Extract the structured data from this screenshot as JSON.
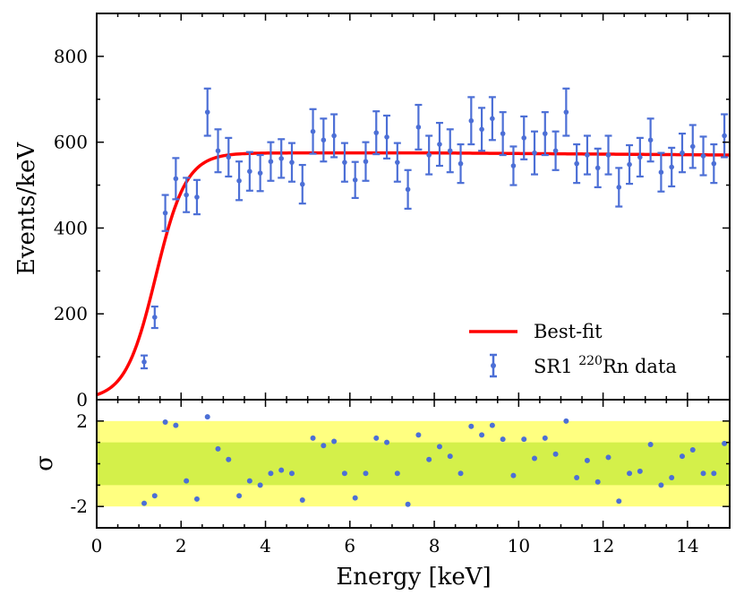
{
  "chart_data": [
    {
      "type": "scatter",
      "panel": "top",
      "ylabel": "Events/keV",
      "xlim": [
        0,
        15
      ],
      "ylim": [
        0,
        900
      ],
      "yticks": [
        0,
        200,
        400,
        600,
        800
      ],
      "ytick_labels": [
        "0",
        "200",
        "400",
        "600",
        "800"
      ],
      "legend_position": "bottom-right",
      "series": [
        {
          "name": "SR1 220Rn data",
          "legend_prefix": "SR1 ",
          "legend_sup": "220",
          "legend_suffix": "Rn data",
          "color": "#4c6fd6",
          "x": [
            1.125,
            1.375,
            1.625,
            1.875,
            2.125,
            2.375,
            2.625,
            2.875,
            3.125,
            3.375,
            3.625,
            3.875,
            4.125,
            4.375,
            4.625,
            4.875,
            5.125,
            5.375,
            5.625,
            5.875,
            6.125,
            6.375,
            6.625,
            6.875,
            7.125,
            7.375,
            7.625,
            7.875,
            8.125,
            8.375,
            8.625,
            8.875,
            9.125,
            9.375,
            9.625,
            9.875,
            10.125,
            10.375,
            10.625,
            10.875,
            11.125,
            11.375,
            11.625,
            11.875,
            12.125,
            12.375,
            12.625,
            12.875,
            13.125,
            13.375,
            13.625,
            13.875,
            14.125,
            14.375,
            14.625,
            14.875
          ],
          "y": [
            88,
            192,
            435,
            515,
            477,
            472,
            670,
            580,
            565,
            510,
            532,
            528,
            555,
            562,
            553,
            502,
            625,
            605,
            615,
            553,
            512,
            555,
            622,
            612,
            553,
            490,
            635,
            570,
            595,
            580,
            550,
            650,
            630,
            655,
            620,
            545,
            610,
            575,
            620,
            580,
            670,
            550,
            570,
            540,
            570,
            495,
            548,
            565,
            605,
            530,
            542,
            575,
            590,
            568,
            550,
            615
          ],
          "yerr": [
            15,
            25,
            42,
            48,
            40,
            40,
            55,
            50,
            45,
            45,
            45,
            42,
            45,
            45,
            45,
            45,
            52,
            50,
            50,
            45,
            42,
            45,
            50,
            50,
            45,
            45,
            52,
            45,
            50,
            50,
            45,
            55,
            50,
            50,
            50,
            45,
            50,
            50,
            50,
            45,
            55,
            45,
            45,
            45,
            45,
            45,
            45,
            45,
            50,
            45,
            45,
            45,
            50,
            45,
            45,
            50
          ]
        },
        {
          "name": "Best-fit",
          "type": "line",
          "color": "#ff0000",
          "plateau": 575,
          "threshold_keV": 1.4,
          "width_keV": 0.36,
          "x": [
            0,
            0.2,
            0.4,
            0.6,
            0.8,
            1.0,
            1.2,
            1.4,
            1.6,
            1.8,
            2.0,
            2.2,
            2.4,
            2.6,
            2.8,
            3.0,
            3.5,
            4.0,
            5.0,
            7.0,
            10.0,
            13.0,
            15.0
          ],
          "y": [
            1,
            3,
            8,
            20,
            48,
            106,
            205,
            339,
            460,
            528,
            557,
            568,
            572,
            574,
            574,
            575,
            575,
            575,
            575,
            575,
            573,
            571,
            570
          ]
        }
      ]
    },
    {
      "type": "scatter",
      "panel": "bottom",
      "xlabel": "Energy [keV]",
      "ylabel": "σ",
      "xlim": [
        0,
        15
      ],
      "ylim": [
        -3,
        3
      ],
      "xticks": [
        0,
        2,
        4,
        6,
        8,
        10,
        12,
        14
      ],
      "xtick_labels": [
        "0",
        "2",
        "4",
        "6",
        "8",
        "10",
        "12",
        "14"
      ],
      "yticks": [
        -2,
        2
      ],
      "ytick_labels": [
        "-2",
        "2"
      ],
      "bands": [
        {
          "name": "2-sigma band",
          "range": [
            -2,
            2
          ],
          "color": "#ffff80"
        },
        {
          "name": "1-sigma band",
          "range": [
            -1,
            1
          ],
          "color": "#d4f04a"
        }
      ],
      "series": [
        {
          "name": "residuals",
          "color": "#4c6fd6",
          "x": [
            1.125,
            1.375,
            1.625,
            1.875,
            2.125,
            2.375,
            2.625,
            2.875,
            3.125,
            3.375,
            3.625,
            3.875,
            4.125,
            4.375,
            4.625,
            4.875,
            5.125,
            5.375,
            5.625,
            5.875,
            6.125,
            6.375,
            6.625,
            6.875,
            7.125,
            7.375,
            7.625,
            7.875,
            8.125,
            8.375,
            8.625,
            8.875,
            9.125,
            9.375,
            9.625,
            9.875,
            10.125,
            10.375,
            10.625,
            10.875,
            11.125,
            11.375,
            11.625,
            11.875,
            12.125,
            12.375,
            12.625,
            12.875,
            13.125,
            13.375,
            13.625,
            13.875,
            14.125,
            14.375,
            14.625,
            14.875
          ],
          "y": [
            -1.85,
            -1.5,
            1.95,
            1.8,
            -0.8,
            -1.65,
            2.2,
            0.7,
            0.2,
            -1.5,
            -0.8,
            -1.0,
            -0.45,
            -0.3,
            -0.45,
            -1.7,
            1.2,
            0.85,
            1.05,
            -0.45,
            -1.6,
            -0.45,
            1.2,
            1.0,
            -0.45,
            -1.9,
            1.35,
            0.2,
            0.8,
            0.35,
            -0.45,
            1.75,
            1.35,
            1.8,
            1.15,
            -0.55,
            1.15,
            0.25,
            1.2,
            0.45,
            2.0,
            -0.65,
            0.15,
            -0.85,
            0.3,
            -1.75,
            -0.45,
            -0.35,
            0.9,
            -1.0,
            -0.65,
            0.35,
            0.65,
            -0.45,
            -0.45,
            0.95
          ]
        }
      ]
    }
  ]
}
